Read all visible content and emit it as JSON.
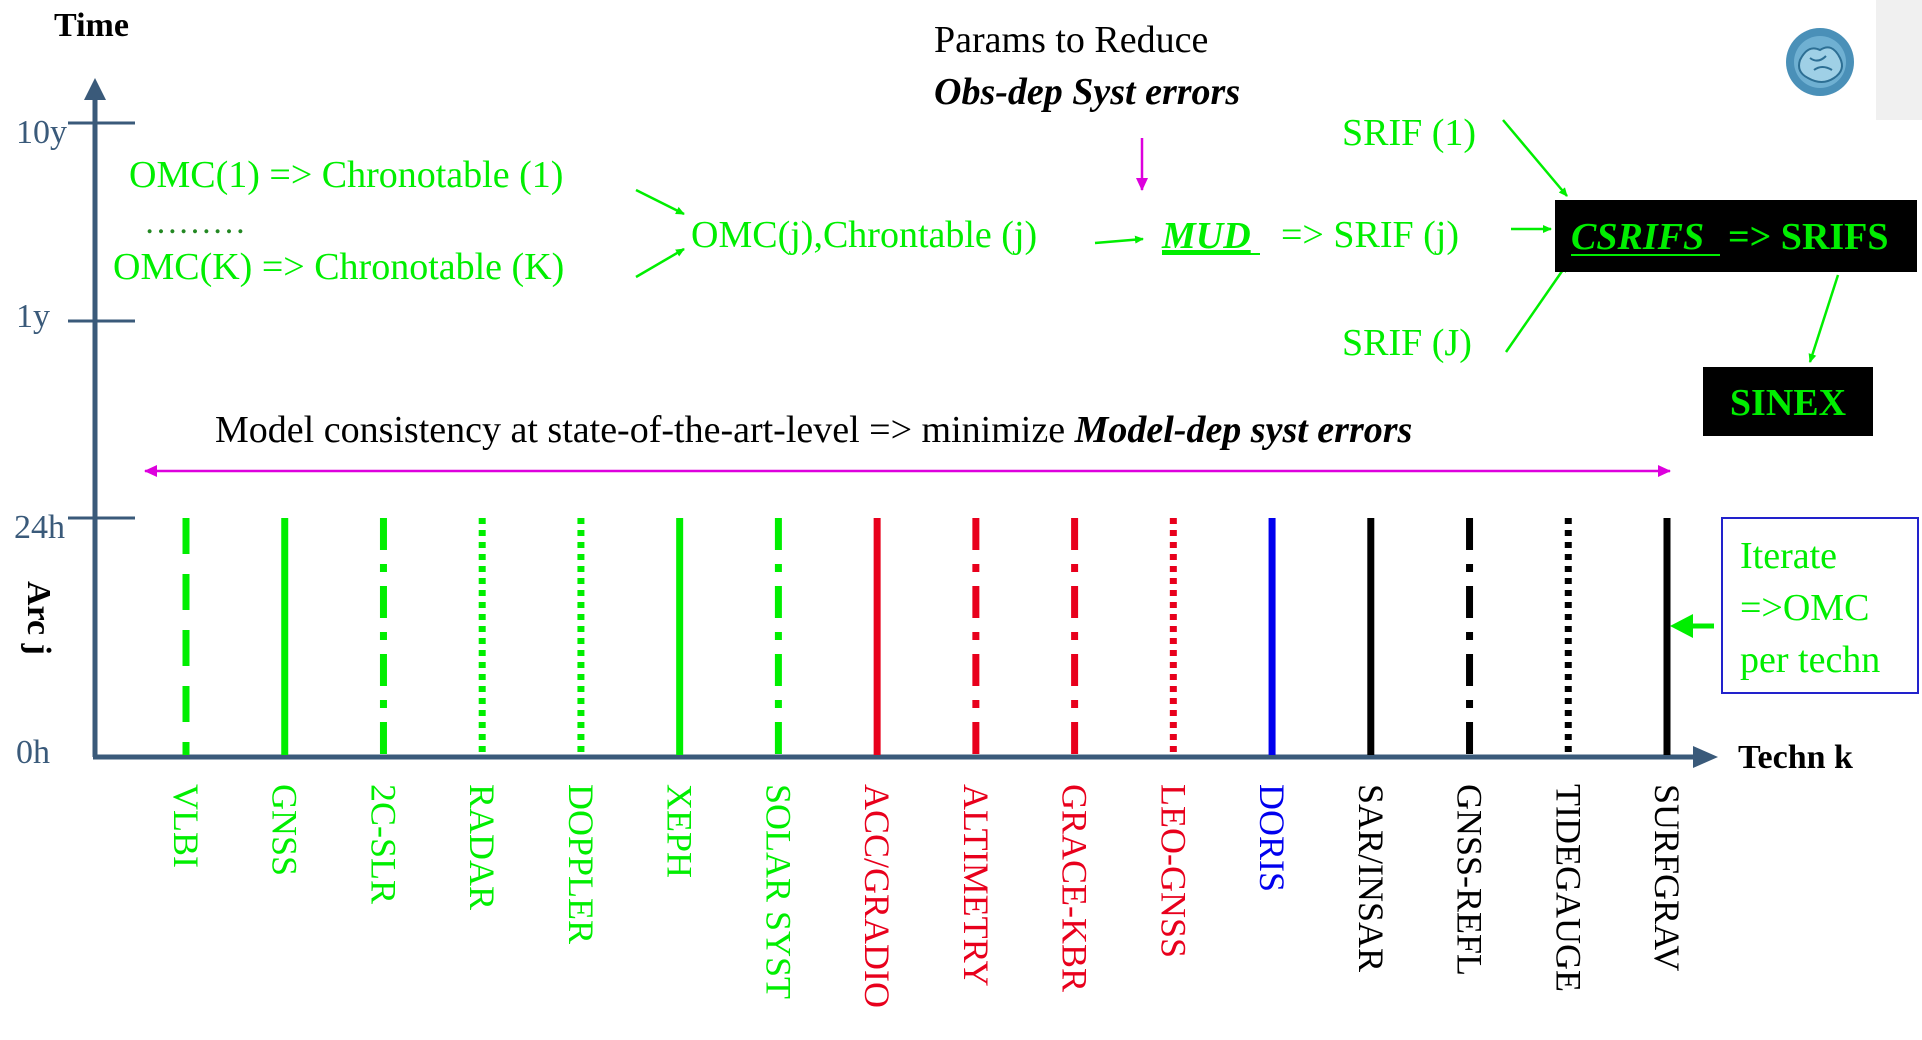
{
  "colors": {
    "axis": "#3a5a7a",
    "green": "#00ee00",
    "red": "#e8001c",
    "blue": "#0000ee",
    "black": "#000000",
    "magenta": "#dd00dd",
    "box_border": "#2222cc"
  },
  "axes": {
    "y_title": "Time",
    "x_title": "Techn k",
    "y_ticks": [
      "10y",
      "1y",
      "24h",
      "0h"
    ],
    "arc_label": "Arc j"
  },
  "flow": {
    "omc_1": "OMC(1) => Chronotable (1)",
    "dots": "………",
    "omc_k": "OMC(K) => Chronotable (K)",
    "omc_j": "OMC(j),Chrontable (j)",
    "params_title": "Params to Reduce",
    "params_sub": "Obs-dep Syst errors",
    "mud": "MUD",
    "srif_j": "=> SRIF (j)",
    "srif_1": "SRIF (1)",
    "srif_big_j": "SRIF (J)",
    "csrifs": "CSRIFS",
    "srifs": "=> SRIFS",
    "sinex": "SINEX"
  },
  "consistency": {
    "prefix": "Model consistency at state-of-the-art-level => minimize ",
    "emphasis": "Model-dep syst errors"
  },
  "iterate": {
    "line1": "Iterate",
    "line2": "=>OMC",
    "line3": "per techn"
  },
  "techniques": [
    {
      "name": "VLBI",
      "color": "green",
      "style": "dashed"
    },
    {
      "name": "GNSS",
      "color": "green",
      "style": "solid"
    },
    {
      "name": "2C-SLR",
      "color": "green",
      "style": "dashdot"
    },
    {
      "name": "RADAR",
      "color": "green",
      "style": "dotted"
    },
    {
      "name": "DOPPLER",
      "color": "green",
      "style": "dotted"
    },
    {
      "name": "XEPH",
      "color": "green",
      "style": "solid"
    },
    {
      "name": "SOLAR SYST",
      "color": "green",
      "style": "dashdot"
    },
    {
      "name": "ACC/GRADIO",
      "color": "red",
      "style": "solid"
    },
    {
      "name": "ALTIMETRY",
      "color": "red",
      "style": "dashdot"
    },
    {
      "name": "GRACE-KBR",
      "color": "red",
      "style": "dashdot"
    },
    {
      "name": "LEO-GNSS",
      "color": "red",
      "style": "dotted"
    },
    {
      "name": "DORIS",
      "color": "blue",
      "style": "solid"
    },
    {
      "name": "SAR/INSAR",
      "color": "black",
      "style": "solid"
    },
    {
      "name": "GNSS-REFL",
      "color": "black",
      "style": "dashdot"
    },
    {
      "name": "TIDEGAUGE",
      "color": "black",
      "style": "dotted"
    },
    {
      "name": "SURFGRAV",
      "color": "black",
      "style": "solid"
    }
  ],
  "logo": {
    "name": "brain-logo-icon"
  }
}
